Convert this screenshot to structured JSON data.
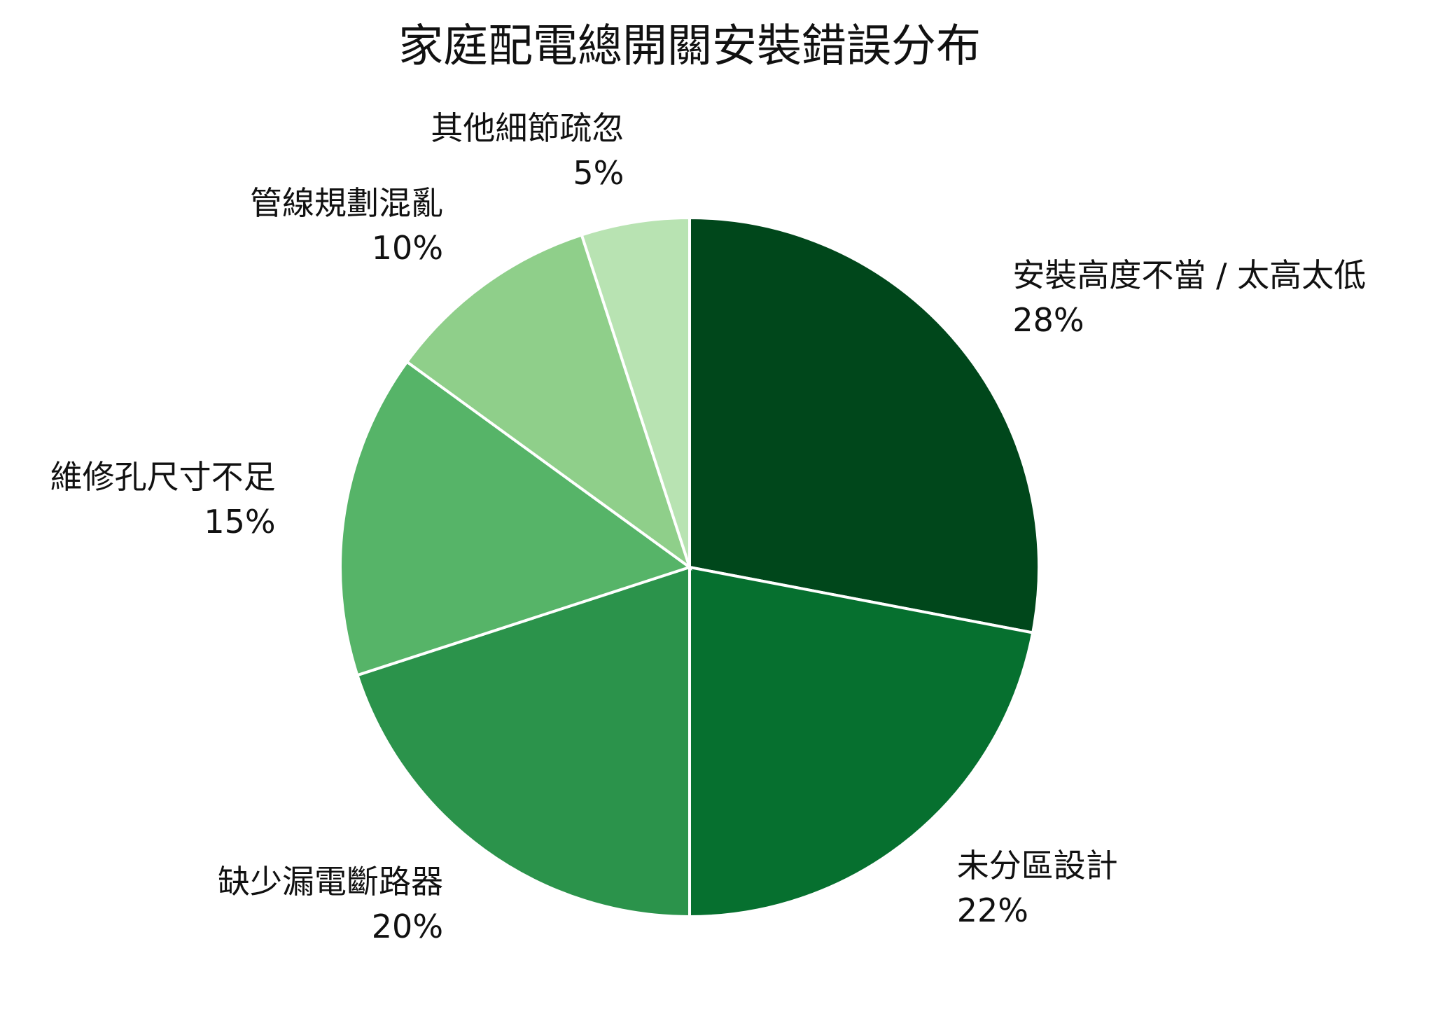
{
  "chart_data": {
    "type": "pie",
    "title": "家庭配電總開關安裝錯誤分布",
    "categories": [
      "安裝高度不當 / 太高太低",
      "未分區設計",
      "缺少漏電斷路器",
      "維修孔尺寸不足",
      "管線規劃混亂",
      "其他細節疏忽"
    ],
    "values": [
      28,
      22,
      20,
      15,
      10,
      5
    ],
    "value_labels": [
      "28%",
      "22%",
      "20%",
      "15%",
      "10%",
      "5%"
    ],
    "colors": [
      "#00471b",
      "#06702f",
      "#2b934b",
      "#56b468",
      "#8fcf8a",
      "#b8e3b2"
    ]
  }
}
